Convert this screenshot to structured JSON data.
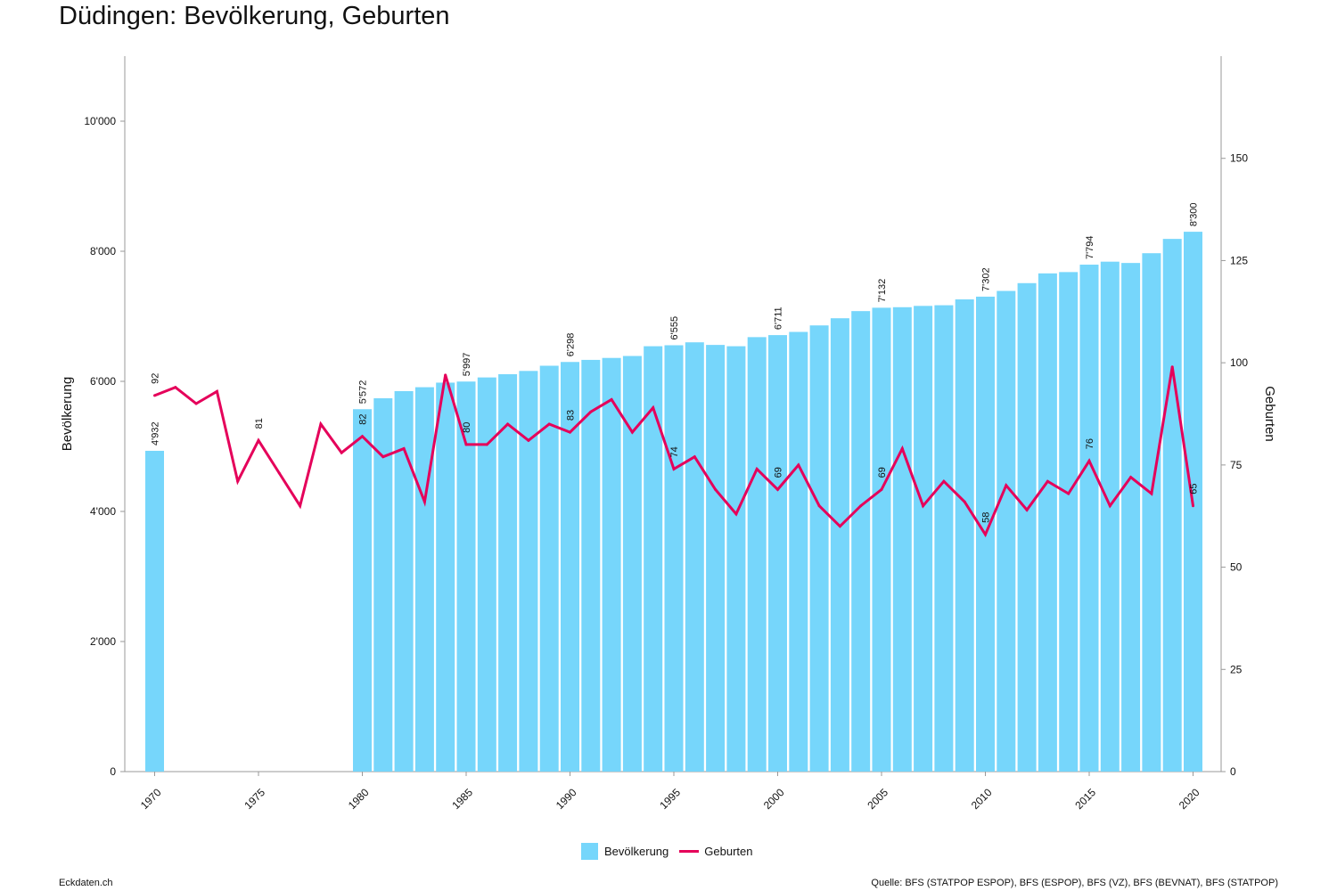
{
  "title": "Düdingen: Bevölkerung, Geburten",
  "footer": {
    "left": "Eckdaten.ch",
    "right": "Quelle: BFS (STATPOP ESPOP), BFS (ESPOP), BFS (VZ), BFS (BEVNAT), BFS (STATPOP)"
  },
  "legend": {
    "bar_label": "Bevölkerung",
    "line_label": "Geburten"
  },
  "colors": {
    "bar": "#76d6fb",
    "line": "#e5005a",
    "axis": "#999999"
  },
  "chart_data": {
    "type": "bar",
    "title": "Düdingen: Bevölkerung, Geburten",
    "ylabel": "Bevölkerung",
    "y2label": "Geburten",
    "xlim": [
      1970,
      2020
    ],
    "ylim": [
      0,
      11000
    ],
    "y2lim": [
      0,
      175
    ],
    "x_ticks": [
      1970,
      1975,
      1980,
      1985,
      1990,
      1995,
      2000,
      2005,
      2010,
      2015,
      2020
    ],
    "y_ticks": [
      {
        "value": 0,
        "label": "0"
      },
      {
        "value": 2000,
        "label": "2'000"
      },
      {
        "value": 4000,
        "label": "4'000"
      },
      {
        "value": 6000,
        "label": "6'000"
      },
      {
        "value": 8000,
        "label": "8'000"
      },
      {
        "value": 10000,
        "label": "10'000"
      }
    ],
    "y2_ticks": [
      {
        "value": 0,
        "label": "0"
      },
      {
        "value": 25,
        "label": "25"
      },
      {
        "value": 50,
        "label": "50"
      },
      {
        "value": 75,
        "label": "75"
      },
      {
        "value": 100,
        "label": "100"
      },
      {
        "value": 125,
        "label": "125"
      },
      {
        "value": 150,
        "label": "150"
      }
    ],
    "legend_position": "bottom",
    "series": [
      {
        "name": "Bevölkerung",
        "type": "bar",
        "axis": "left",
        "data": [
          {
            "x": 1970,
            "y": 4932,
            "label": "4'932"
          },
          {
            "x": 1980,
            "y": 5572,
            "label": "5'572"
          },
          {
            "x": 1981,
            "y": 5740
          },
          {
            "x": 1982,
            "y": 5850
          },
          {
            "x": 1983,
            "y": 5910
          },
          {
            "x": 1984,
            "y": 5980
          },
          {
            "x": 1985,
            "y": 5997,
            "label": "5'997"
          },
          {
            "x": 1986,
            "y": 6060
          },
          {
            "x": 1987,
            "y": 6110
          },
          {
            "x": 1988,
            "y": 6160
          },
          {
            "x": 1989,
            "y": 6240
          },
          {
            "x": 1990,
            "y": 6298,
            "label": "6'298"
          },
          {
            "x": 1991,
            "y": 6330
          },
          {
            "x": 1992,
            "y": 6360
          },
          {
            "x": 1993,
            "y": 6390
          },
          {
            "x": 1994,
            "y": 6540
          },
          {
            "x": 1995,
            "y": 6555,
            "label": "6'555"
          },
          {
            "x": 1996,
            "y": 6600
          },
          {
            "x": 1997,
            "y": 6560
          },
          {
            "x": 1998,
            "y": 6540
          },
          {
            "x": 1999,
            "y": 6680
          },
          {
            "x": 2000,
            "y": 6711,
            "label": "6'711"
          },
          {
            "x": 2001,
            "y": 6760
          },
          {
            "x": 2002,
            "y": 6860
          },
          {
            "x": 2003,
            "y": 6970
          },
          {
            "x": 2004,
            "y": 7080
          },
          {
            "x": 2005,
            "y": 7132,
            "label": "7'132"
          },
          {
            "x": 2006,
            "y": 7140
          },
          {
            "x": 2007,
            "y": 7160
          },
          {
            "x": 2008,
            "y": 7170
          },
          {
            "x": 2009,
            "y": 7260
          },
          {
            "x": 2010,
            "y": 7302,
            "label": "7'302"
          },
          {
            "x": 2011,
            "y": 7390
          },
          {
            "x": 2012,
            "y": 7510
          },
          {
            "x": 2013,
            "y": 7660
          },
          {
            "x": 2014,
            "y": 7680
          },
          {
            "x": 2015,
            "y": 7794,
            "label": "7'794"
          },
          {
            "x": 2016,
            "y": 7840
          },
          {
            "x": 2017,
            "y": 7820
          },
          {
            "x": 2018,
            "y": 7970
          },
          {
            "x": 2019,
            "y": 8190
          },
          {
            "x": 2020,
            "y": 8300,
            "label": "8'300"
          }
        ]
      },
      {
        "name": "Geburten",
        "type": "line",
        "axis": "right",
        "data": [
          {
            "x": 1970,
            "y": 92,
            "label": "92"
          },
          {
            "x": 1971,
            "y": 94
          },
          {
            "x": 1972,
            "y": 90
          },
          {
            "x": 1973,
            "y": 93
          },
          {
            "x": 1974,
            "y": 71
          },
          {
            "x": 1975,
            "y": 81,
            "label": "81"
          },
          {
            "x": 1976,
            "y": 73
          },
          {
            "x": 1977,
            "y": 65
          },
          {
            "x": 1978,
            "y": 85
          },
          {
            "x": 1979,
            "y": 78
          },
          {
            "x": 1980,
            "y": 82,
            "label": "82"
          },
          {
            "x": 1981,
            "y": 77
          },
          {
            "x": 1982,
            "y": 79
          },
          {
            "x": 1983,
            "y": 66
          },
          {
            "x": 1984,
            "y": 97
          },
          {
            "x": 1985,
            "y": 80,
            "label": "80"
          },
          {
            "x": 1986,
            "y": 80
          },
          {
            "x": 1987,
            "y": 85
          },
          {
            "x": 1988,
            "y": 81
          },
          {
            "x": 1989,
            "y": 85
          },
          {
            "x": 1990,
            "y": 83,
            "label": "83"
          },
          {
            "x": 1991,
            "y": 88
          },
          {
            "x": 1992,
            "y": 91
          },
          {
            "x": 1993,
            "y": 83
          },
          {
            "x": 1994,
            "y": 89
          },
          {
            "x": 1995,
            "y": 74,
            "label": "74"
          },
          {
            "x": 1996,
            "y": 77
          },
          {
            "x": 1997,
            "y": 69
          },
          {
            "x": 1998,
            "y": 63
          },
          {
            "x": 1999,
            "y": 74
          },
          {
            "x": 2000,
            "y": 69,
            "label": "69"
          },
          {
            "x": 2001,
            "y": 75
          },
          {
            "x": 2002,
            "y": 65
          },
          {
            "x": 2003,
            "y": 60
          },
          {
            "x": 2004,
            "y": 65
          },
          {
            "x": 2005,
            "y": 69,
            "label": "69"
          },
          {
            "x": 2006,
            "y": 79
          },
          {
            "x": 2007,
            "y": 65
          },
          {
            "x": 2008,
            "y": 71
          },
          {
            "x": 2009,
            "y": 66
          },
          {
            "x": 2010,
            "y": 58,
            "label": "58"
          },
          {
            "x": 2011,
            "y": 70
          },
          {
            "x": 2012,
            "y": 64
          },
          {
            "x": 2013,
            "y": 71
          },
          {
            "x": 2014,
            "y": 68
          },
          {
            "x": 2015,
            "y": 76,
            "label": "76"
          },
          {
            "x": 2016,
            "y": 65
          },
          {
            "x": 2017,
            "y": 72
          },
          {
            "x": 2018,
            "y": 68
          },
          {
            "x": 2019,
            "y": 99
          },
          {
            "x": 2020,
            "y": 65,
            "label": "65"
          }
        ]
      }
    ]
  }
}
